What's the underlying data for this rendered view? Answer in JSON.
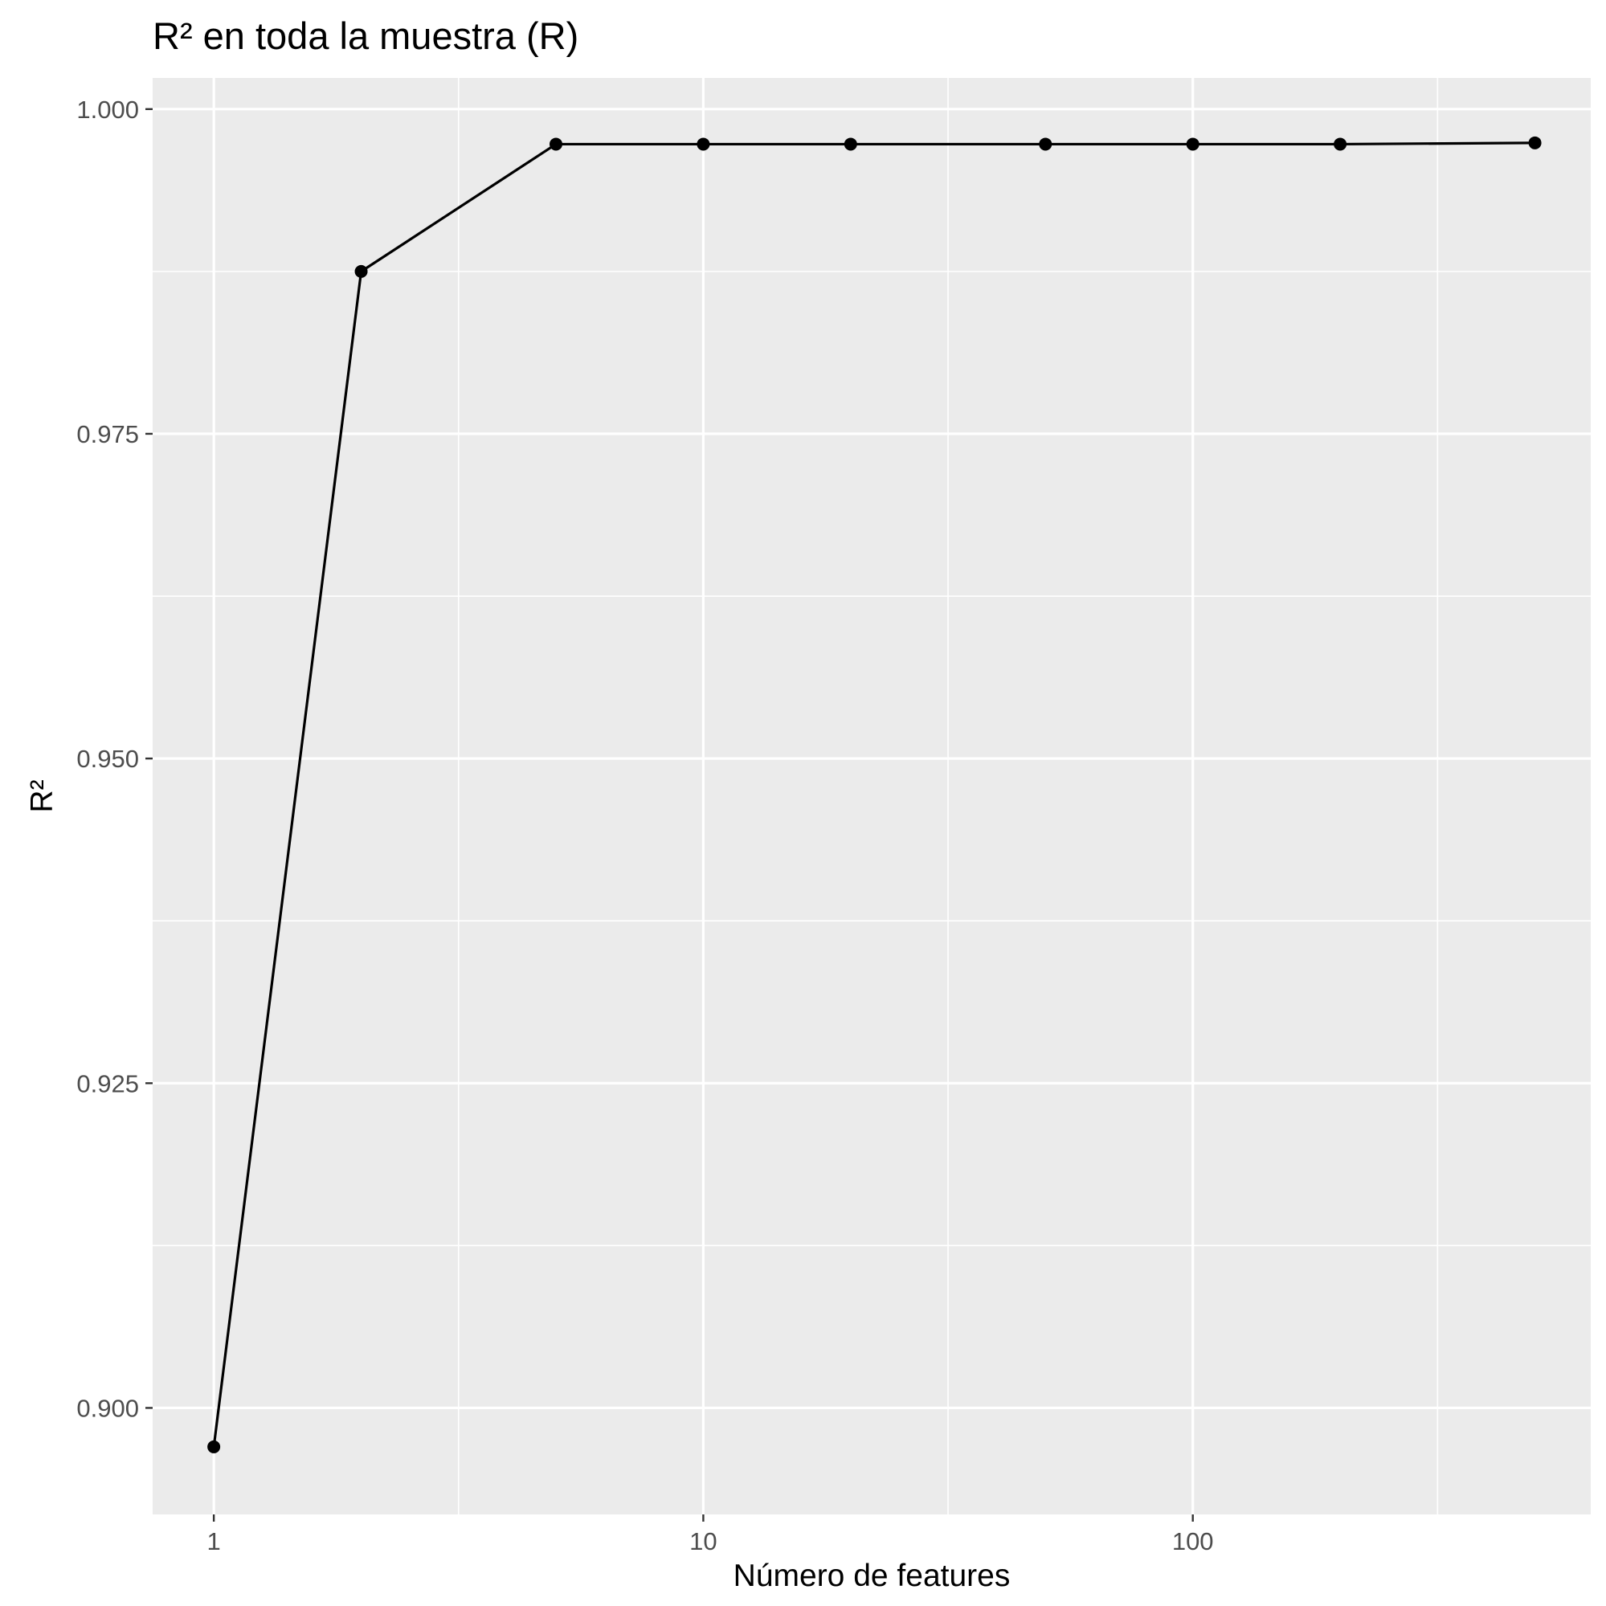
{
  "chart_data": {
    "type": "line",
    "title": "R² en toda la muestra (R)",
    "xlabel": "Número de features",
    "ylabel": "R²",
    "x_scale": "log10",
    "xlim": [
      0.75,
      650
    ],
    "ylim": [
      0.8918,
      1.0024
    ],
    "x_ticks": [
      1,
      10,
      100
    ],
    "x_tick_labels": [
      "1",
      "10",
      "100"
    ],
    "y_ticks": [
      0.9,
      0.925,
      0.95,
      0.975,
      1.0
    ],
    "y_tick_labels": [
      "0.900",
      "0.925",
      "0.950",
      "0.975",
      "1.000"
    ],
    "grid": true,
    "legend": "none",
    "series": [
      {
        "x": [
          1,
          2,
          5,
          10,
          20,
          50,
          100,
          200,
          500
        ],
        "y": [
          0.897,
          0.9875,
          0.9973,
          0.9973,
          0.9973,
          0.9973,
          0.9973,
          0.9973,
          0.9974
        ],
        "color": "#000000"
      }
    ],
    "colors": {
      "panel_background": "#ebebeb",
      "grid_major": "#ffffff",
      "grid_minor": "#ffffff",
      "line": "#000000",
      "tick_text": "#4d4d4d",
      "tick_mark": "#333333"
    }
  }
}
